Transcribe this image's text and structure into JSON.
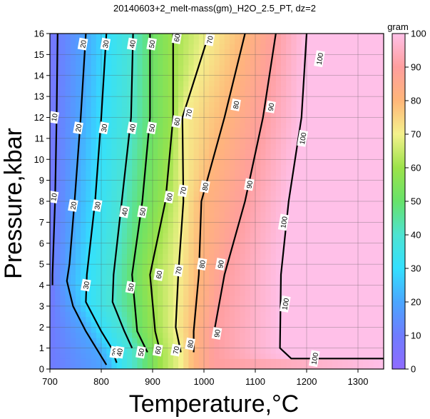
{
  "chart_data": {
    "type": "heatmap",
    "title": "20140603+2_melt-mass(gm)_H2O_2.5_PT, dz=2",
    "xlabel": "Temperature,°C",
    "ylabel": "Pressure,kbar",
    "xlim": [
      700,
      1350
    ],
    "ylim": [
      0,
      16
    ],
    "x_ticks": [
      700,
      800,
      900,
      1000,
      1100,
      1200,
      1300
    ],
    "y_ticks": [
      0,
      1,
      2,
      3,
      4,
      5,
      6,
      7,
      8,
      9,
      10,
      11,
      12,
      13,
      14,
      15,
      16
    ],
    "grid": true,
    "colorbar": {
      "label": "gram",
      "range": [
        0,
        100
      ],
      "ticks": [
        0,
        10,
        20,
        30,
        40,
        50,
        60,
        70,
        80,
        90,
        100
      ],
      "colors": [
        "#8f6bff",
        "#6f7cff",
        "#4aa6ff",
        "#33e0ff",
        "#4de3d2",
        "#67e26a",
        "#9ce24a",
        "#f4f18c",
        "#ffb679",
        "#ff9e9e",
        "#ffc0e8"
      ]
    },
    "contour_levels": [
      10,
      20,
      30,
      40,
      50,
      60,
      70,
      80,
      90,
      100
    ],
    "contours": [
      {
        "level": 10,
        "points": [
          [
            715,
            16
          ],
          [
            713,
            12
          ],
          [
            710,
            8
          ],
          [
            705,
            4.5
          ],
          [
            705,
            4.0
          ]
        ],
        "labels": [
          [
            708,
            12.0
          ],
          [
            707,
            8.2
          ]
        ]
      },
      {
        "level": 20,
        "points": [
          [
            770,
            16
          ],
          [
            760,
            12
          ],
          [
            748,
            8
          ],
          [
            738,
            5
          ],
          [
            733,
            4.2
          ],
          [
            745,
            3.0
          ],
          [
            770,
            1.8
          ],
          [
            790,
            1.0
          ],
          [
            810,
            0.2
          ]
        ],
        "labels": [
          [
            764,
            15.5
          ],
          [
            755,
            11.5
          ],
          [
            745,
            7.8
          ]
        ]
      },
      {
        "level": 30,
        "points": [
          [
            810,
            16
          ],
          [
            800,
            12
          ],
          [
            788,
            8
          ],
          [
            772,
            4.5
          ],
          [
            770,
            3.2
          ],
          [
            800,
            1.8
          ],
          [
            820,
            1.0
          ],
          [
            830,
            0.3
          ]
        ],
        "labels": [
          [
            808,
            15.5
          ],
          [
            805,
            11.5
          ],
          [
            792,
            7.8
          ],
          [
            770,
            4.0
          ],
          [
            826,
            0.8
          ]
        ]
      },
      {
        "level": 40,
        "points": [
          [
            862,
            16
          ],
          [
            858,
            12
          ],
          [
            840,
            8
          ],
          [
            824,
            4.5
          ],
          [
            822,
            3.2
          ],
          [
            845,
            1.8
          ],
          [
            860,
            1.0
          ]
        ],
        "labels": [
          [
            860,
            15.5
          ],
          [
            860,
            11.5
          ],
          [
            845,
            7.5
          ],
          [
            835,
            0.8
          ]
        ]
      },
      {
        "level": 50,
        "points": [
          [
            895,
            16
          ],
          [
            895,
            12
          ],
          [
            880,
            8
          ],
          [
            860,
            4.5
          ],
          [
            870,
            1.8
          ],
          [
            890,
            0.8
          ]
        ],
        "labels": [
          [
            898,
            15.5
          ],
          [
            898,
            11.5
          ],
          [
            880,
            7.5
          ],
          [
            857,
            3.9
          ],
          [
            877,
            0.8
          ]
        ]
      },
      {
        "level": 60,
        "points": [
          [
            940,
            16
          ],
          [
            940,
            12
          ],
          [
            925,
            8
          ],
          [
            895,
            4.5
          ],
          [
            905,
            1.8
          ],
          [
            915,
            0.8
          ]
        ],
        "labels": [
          [
            947,
            15.8
          ],
          [
            947,
            11.8
          ],
          [
            932,
            8.2
          ],
          [
            912,
            4.5
          ],
          [
            910,
            0.9
          ]
        ]
      },
      {
        "level": 70,
        "points": [
          [
            1010,
            16
          ],
          [
            958,
            12
          ],
          [
            960,
            8
          ],
          [
            950,
            4.5
          ],
          [
            945,
            2.0
          ],
          [
            955,
            0.8
          ]
        ],
        "labels": [
          [
            1011,
            15.7
          ],
          [
            970,
            12.2
          ],
          [
            959,
            8.5
          ],
          [
            950,
            4.7
          ],
          [
            945,
            0.9
          ]
        ]
      },
      {
        "level": 80,
        "points": [
          [
            1080,
            16
          ],
          [
            1040,
            12
          ],
          [
            995,
            8
          ],
          [
            990,
            4.5
          ],
          [
            980,
            1.8
          ],
          [
            980,
            0.8
          ]
        ],
        "labels": [
          [
            1062,
            12.6
          ],
          [
            1002,
            8.7
          ],
          [
            996,
            5.0
          ],
          [
            973,
            1.2
          ]
        ]
      },
      {
        "level": 90,
        "points": [
          [
            1140,
            16
          ],
          [
            1115,
            12
          ],
          [
            1080,
            8
          ],
          [
            1040,
            4.5
          ],
          [
            1020,
            1.8
          ]
        ],
        "labels": [
          [
            1130,
            12.5
          ],
          [
            1088,
            8.8
          ],
          [
            1032,
            5.0
          ],
          [
            1025,
            1.7
          ]
        ]
      },
      {
        "level": 100,
        "points": [
          [
            1200,
            16
          ],
          [
            1190,
            12
          ],
          [
            1165,
            8
          ],
          [
            1150,
            4.5
          ],
          [
            1148,
            1.0
          ],
          [
            1170,
            0.5
          ],
          [
            1350,
            0.5
          ]
        ],
        "labels": [
          [
            1225,
            14.8
          ],
          [
            1192,
            11.0
          ],
          [
            1155,
            7.0
          ],
          [
            1158,
            3.1
          ],
          [
            1215,
            0.5
          ]
        ]
      }
    ]
  }
}
